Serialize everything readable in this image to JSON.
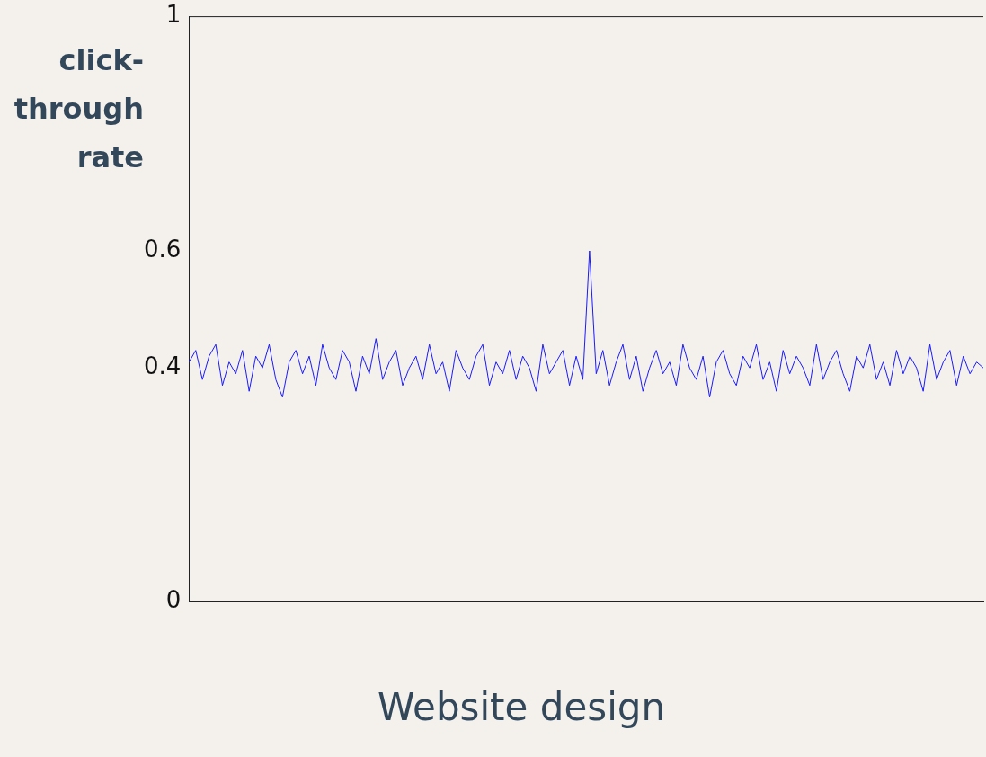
{
  "chart_data": {
    "type": "line",
    "xlabel": "Website design",
    "ylabel": "click-through rate",
    "categories": [
      null,
      null,
      null,
      null,
      null,
      null,
      null,
      null,
      null,
      null,
      null,
      null,
      null,
      null,
      null,
      null,
      null,
      null,
      null,
      null,
      null,
      null,
      null,
      null,
      null,
      null,
      null,
      null,
      null,
      null,
      null,
      null,
      null,
      null,
      null,
      null,
      null,
      null,
      null,
      null,
      null,
      null,
      null,
      null,
      null,
      null,
      null,
      null,
      null,
      null,
      null,
      null,
      null,
      null,
      null,
      null,
      null,
      null,
      null,
      null,
      null,
      null,
      null,
      null,
      null,
      null,
      null,
      null,
      null,
      null,
      null,
      null,
      null,
      null,
      null,
      null,
      null,
      null,
      null,
      null,
      null,
      null,
      null,
      null,
      null,
      null,
      null,
      null,
      null,
      null,
      null,
      null,
      null,
      null,
      null,
      null,
      null,
      null,
      null,
      null,
      null,
      null,
      null,
      null,
      null,
      null,
      null,
      null,
      null,
      null,
      null,
      null,
      null,
      null,
      null,
      null,
      null,
      null,
      null,
      null
    ],
    "series": [
      {
        "color": "#1a1aff",
        "values": [
          0.41,
          0.43,
          0.38,
          0.42,
          0.44,
          0.37,
          0.41,
          0.39,
          0.43,
          0.36,
          0.42,
          0.4,
          0.44,
          0.38,
          0.35,
          0.41,
          0.43,
          0.39,
          0.42,
          0.37,
          0.44,
          0.4,
          0.38,
          0.43,
          0.41,
          0.36,
          0.42,
          0.39,
          0.45,
          0.38,
          0.41,
          0.43,
          0.37,
          0.4,
          0.42,
          0.38,
          0.44,
          0.39,
          0.41,
          0.36,
          0.43,
          0.4,
          0.38,
          0.42,
          0.44,
          0.37,
          0.41,
          0.39,
          0.43,
          0.38,
          0.42,
          0.4,
          0.36,
          0.44,
          0.39,
          0.41,
          0.43,
          0.37,
          0.42,
          0.38,
          0.6,
          0.39,
          0.43,
          0.37,
          0.41,
          0.44,
          0.38,
          0.42,
          0.36,
          0.4,
          0.43,
          0.39,
          0.41,
          0.37,
          0.44,
          0.4,
          0.38,
          0.42,
          0.35,
          0.41,
          0.43,
          0.39,
          0.37,
          0.42,
          0.4,
          0.44,
          0.38,
          0.41,
          0.36,
          0.43,
          0.39,
          0.42,
          0.4,
          0.37,
          0.44,
          0.38,
          0.41,
          0.43,
          0.39,
          0.36,
          0.42,
          0.4,
          0.44,
          0.38,
          0.41,
          0.37,
          0.43,
          0.39,
          0.42,
          0.4,
          0.36,
          0.44,
          0.38,
          0.41,
          0.43,
          0.37,
          0.42,
          0.39,
          0.41,
          0.4
        ]
      }
    ],
    "ylim": [
      0,
      1
    ],
    "yticks": [
      0,
      0.4,
      0.6,
      1
    ],
    "grid": false,
    "legend": false,
    "marker": "none",
    "line_style": "solid"
  }
}
